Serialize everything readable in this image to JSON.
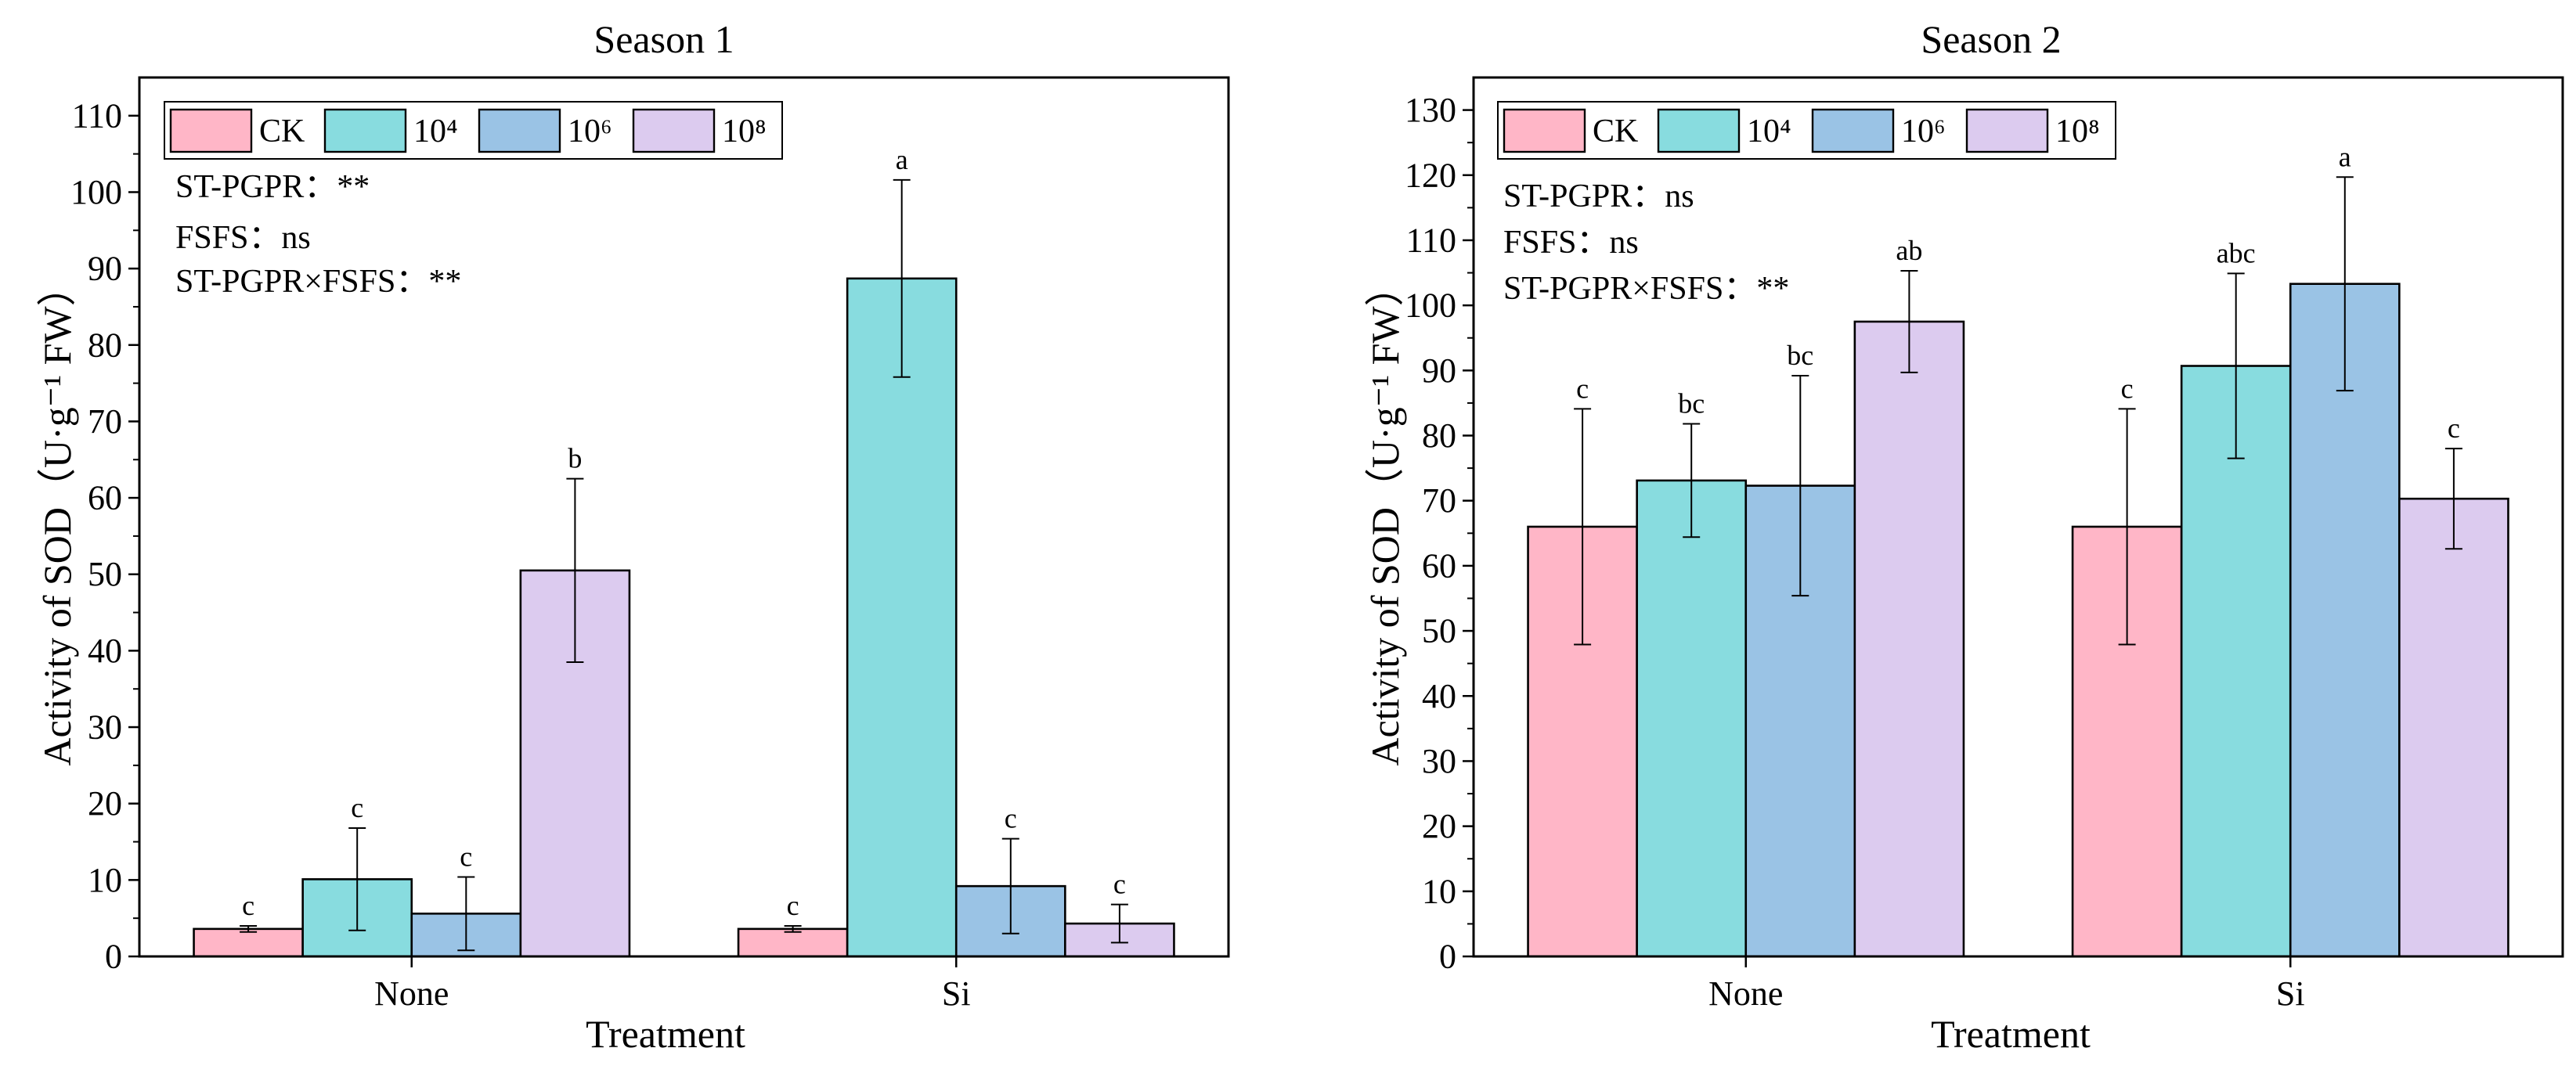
{
  "chart_data": [
    {
      "type": "bar",
      "title": "Season 1",
      "xlabel": "Treatment",
      "ylabel": "Activity of SOD（U·g⁻¹ FW）",
      "categories": [
        "None",
        "Si"
      ],
      "ylim": [
        0,
        115
      ],
      "yticks": [
        0,
        10,
        20,
        30,
        40,
        50,
        60,
        70,
        80,
        90,
        100,
        110
      ],
      "series": [
        {
          "name": "CK",
          "color": "#FFB6C7",
          "values": [
            3.6,
            3.6
          ],
          "errors": [
            0.4,
            0.4
          ],
          "letters": [
            "c",
            "c"
          ]
        },
        {
          "name": "10⁴",
          "color": "#88DCDF",
          "values": [
            10.1,
            88.7
          ],
          "errors": [
            6.7,
            12.9
          ],
          "letters": [
            "c",
            "a"
          ]
        },
        {
          "name": "10⁶",
          "color": "#9AC3E5",
          "values": [
            5.6,
            9.2
          ],
          "errors": [
            4.8,
            6.2
          ],
          "letters": [
            "c",
            "c"
          ]
        },
        {
          "name": "10⁸",
          "color": "#DCCBEF",
          "values": [
            50.5,
            4.3
          ],
          "errors": [
            12.0,
            2.5
          ],
          "letters": [
            "b",
            "c"
          ]
        }
      ],
      "annotations": [
        "ST-PGPR：**",
        "FSFS：ns",
        "ST-PGPR×FSFS：**"
      ]
    },
    {
      "type": "bar",
      "title": "Season 2",
      "xlabel": "Treatment",
      "ylabel": "Activity of SOD（U·g⁻¹ FW）",
      "categories": [
        "None",
        "Si"
      ],
      "ylim": [
        0,
        135
      ],
      "yticks": [
        0,
        10,
        20,
        30,
        40,
        50,
        60,
        70,
        80,
        90,
        100,
        110,
        120,
        130
      ],
      "series": [
        {
          "name": "CK",
          "color": "#FFB6C7",
          "values": [
            66.0,
            66.0
          ],
          "errors": [
            18.1,
            18.1
          ],
          "letters": [
            "c",
            "c"
          ]
        },
        {
          "name": "10⁴",
          "color": "#88DCDF",
          "values": [
            73.1,
            90.7
          ],
          "errors": [
            8.7,
            14.2
          ],
          "letters": [
            "bc",
            "abc"
          ]
        },
        {
          "name": "10⁶",
          "color": "#9AC3E5",
          "values": [
            72.3,
            103.3
          ],
          "errors": [
            16.9,
            16.4
          ],
          "letters": [
            "bc",
            "a"
          ]
        },
        {
          "name": "10⁸",
          "color": "#DCCBEF",
          "values": [
            97.5,
            70.3
          ],
          "errors": [
            7.8,
            7.7
          ],
          "letters": [
            "ab",
            "c"
          ]
        }
      ],
      "annotations": [
        "ST-PGPR：ns",
        "FSFS：ns",
        "ST-PGPR×FSFS：**"
      ]
    }
  ]
}
